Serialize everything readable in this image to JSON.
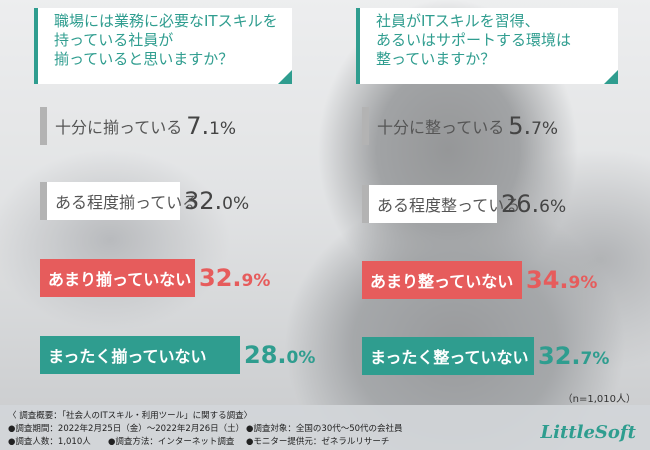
{
  "questions": [
    {
      "title_lines": [
        "職場には業務に必要なITスキルを",
        "持っている社員が",
        "揃っていると思いますか？"
      ],
      "items": [
        {
          "label": "十分に揃っている",
          "int": "7.",
          "dec": "1%"
        },
        {
          "label": "ある程度揃っている",
          "int": "32.",
          "dec": "0%"
        },
        {
          "label": "あまり揃っていない",
          "int": "32.",
          "dec": "9%"
        },
        {
          "label": "まったく揃っていない",
          "int": "28.",
          "dec": "0%"
        }
      ]
    },
    {
      "title_lines": [
        "社員がITスキルを習得、",
        "あるいはサポートする環境は",
        "整っていますか？"
      ],
      "items": [
        {
          "label": "十分に整っている",
          "int": "5.",
          "dec": "7%"
        },
        {
          "label": "ある程度整っている",
          "int": "26.",
          "dec": "6%"
        },
        {
          "label": "あまり整っていない",
          "int": "34.",
          "dec": "9%"
        },
        {
          "label": "まったく整っていない",
          "int": "32.",
          "dec": "7%"
        }
      ]
    }
  ],
  "chart_data": [
    {
      "type": "bar",
      "title": "職場には業務に必要なITスキルを持っている社員が揃っていると思いますか？",
      "categories": [
        "十分に揃っている",
        "ある程度揃っている",
        "あまり揃っていない",
        "まったく揃っていない"
      ],
      "values": [
        7.1,
        32.0,
        32.9,
        28.0
      ],
      "colors": [
        "#b3b3b3",
        "#b3b3b3",
        "#e65c5c",
        "#2f9d8f"
      ]
    },
    {
      "type": "bar",
      "title": "社員がITスキルを習得、あるいはサポートする環境は整っていますか？",
      "categories": [
        "十分に整っている",
        "ある程度整っている",
        "あまり整っていない",
        "まったく整っていない"
      ],
      "values": [
        5.7,
        26.6,
        34.9,
        32.7
      ],
      "colors": [
        "#b3b3b3",
        "#b3b3b3",
        "#e65c5c",
        "#2f9d8f"
      ]
    }
  ],
  "sample_size": "（n=1,010人）",
  "footer": {
    "overview": "〈 調査概要：「社会人のITスキル・利用ツール」に関する調査〉",
    "period": "●調査期間：2022年2月25日（金）〜2022年2月26日（土）",
    "respondents": "●調査人数：1,010人",
    "method": "●調査方法：インターネット調査",
    "target": "●調査対象：全国の30代〜50代の会社員",
    "provider": "●モニター提供元：ゼネラルリサーチ"
  },
  "logo_text": "LittleSoft"
}
